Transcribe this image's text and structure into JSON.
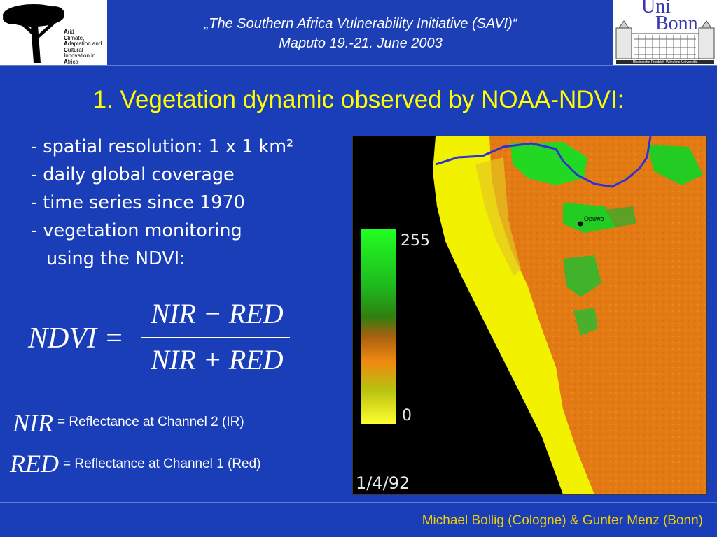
{
  "header": {
    "title_line1": "„The Southern Africa Vulnerability Initiative (SAVI)“",
    "title_line2": "Maputo 19.-21. June 2003",
    "left_logo": {
      "letters": [
        "A",
        "C",
        "A",
        "C",
        "I",
        "A"
      ],
      "words": [
        "rid",
        "limate,",
        "daptation and",
        "ultural",
        "nnovation in",
        "frica"
      ]
    },
    "right_logo": {
      "line1": "Uni",
      "line2": "Bonn",
      "caption": "Rheinische Friedrich-Wilhelms-Universität"
    }
  },
  "slide": {
    "title": "1. Vegetation dynamic observed by NOAA-NDVI:",
    "bullets": [
      "- spatial resolution: 1 x 1 km²",
      "- daily global coverage",
      "- time series since 1970",
      "- vegetation monitoring",
      "using the NDVI:"
    ],
    "formula": {
      "lhs": "NDVI =",
      "numerator": "NIR − RED",
      "denominator": "NIR + RED"
    },
    "definitions": [
      {
        "symbol": "NIR",
        "text": "= Reflectance at Channel 2 (IR)"
      },
      {
        "symbol": "RED",
        "text": "= Reflectance at Channel 1 (Red)"
      }
    ]
  },
  "map": {
    "scale_max": "255",
    "scale_min": "0",
    "place_label": "Opuwo",
    "date": "1/4/92",
    "colors": {
      "vegetation_high": "#22dd22",
      "vegetation_mid": "#e87a14",
      "vegetation_low": "#f2f200",
      "ocean": "#000000",
      "river": "#3030d8"
    }
  },
  "footer": {
    "credit": "Michael Bollig (Cologne) & Gunter Menz (Bonn)"
  },
  "colors": {
    "background": "#1a3db8",
    "title": "#ffff00",
    "footer_text": "#f0d000"
  }
}
